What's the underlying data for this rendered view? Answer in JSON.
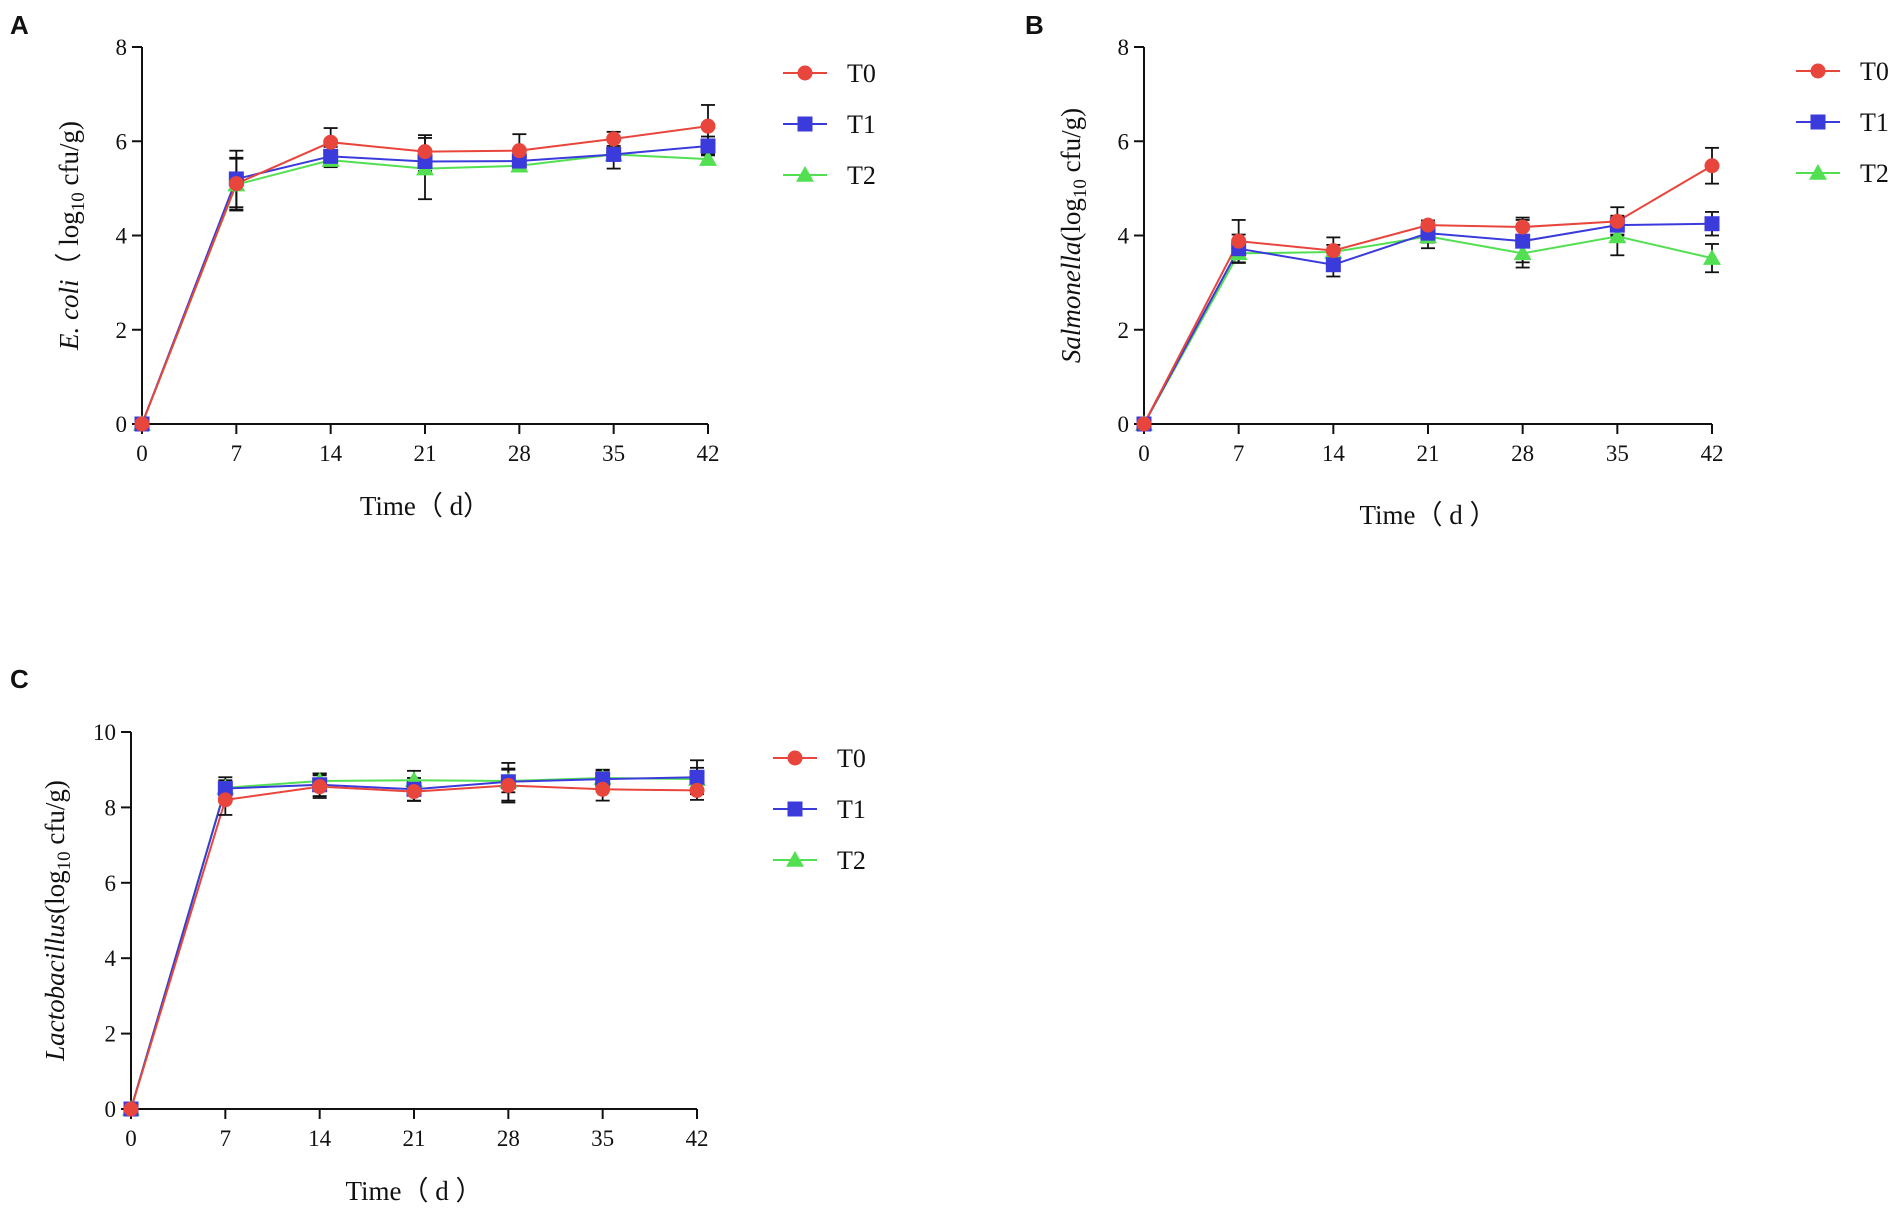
{
  "colors": {
    "T0": "#e8453c",
    "T1": "#3b3bdc",
    "T2": "#52e052",
    "axis": "#111111",
    "errorbar": "#111111"
  },
  "chart_data": [
    {
      "panel": "A",
      "type": "line",
      "title": "",
      "xlabel": "Time（ d）",
      "ylabel": {
        "italic": "E. coli",
        "pre": "（ log",
        "sub": "10",
        "post": " cfu/g)"
      },
      "x": [
        0,
        7,
        14,
        21,
        28,
        35,
        42
      ],
      "xticks": [
        "0",
        "7",
        "14",
        "21",
        "28",
        "35",
        "42"
      ],
      "ylim": [
        0,
        8
      ],
      "yticks": [
        "0",
        "2",
        "4",
        "6",
        "8"
      ],
      "legend": {
        "position": "top-right",
        "entries": [
          "T0",
          "T1",
          "T2"
        ]
      },
      "series": [
        {
          "name": "T0",
          "marker": "circle",
          "values": [
            0,
            5.1,
            5.98,
            5.78,
            5.8,
            6.05,
            6.32
          ],
          "errors": [
            0,
            0.55,
            0.3,
            0.35,
            0.35,
            0.15,
            0.45
          ]
        },
        {
          "name": "T1",
          "marker": "square",
          "values": [
            0,
            5.2,
            5.68,
            5.57,
            5.58,
            5.72,
            5.9
          ],
          "errors": [
            0,
            0.6,
            0.2,
            0.2,
            0.15,
            0.3,
            0.2
          ]
        },
        {
          "name": "T2",
          "marker": "triangle",
          "values": [
            0,
            5.08,
            5.6,
            5.42,
            5.48,
            5.72,
            5.62
          ],
          "errors": [
            0,
            0.55,
            0.15,
            0.65,
            0.1,
            0.1,
            0.1
          ]
        }
      ]
    },
    {
      "panel": "B",
      "type": "line",
      "title": "",
      "xlabel": "Time（ d ）",
      "ylabel": {
        "italic": "Salmonella",
        "pre": "(log",
        "sub": "10",
        "post": " cfu/g)"
      },
      "x": [
        0,
        7,
        14,
        21,
        28,
        35,
        42
      ],
      "xticks": [
        "0",
        "7",
        "14",
        "21",
        "28",
        "35",
        "42"
      ],
      "ylim": [
        0,
        8
      ],
      "yticks": [
        "0",
        "2",
        "4",
        "6",
        "8"
      ],
      "legend": {
        "position": "top-right",
        "entries": [
          "T0",
          "T1",
          "T2"
        ]
      },
      "series": [
        {
          "name": "T0",
          "marker": "circle",
          "values": [
            0,
            3.88,
            3.68,
            4.22,
            4.18,
            4.3,
            5.48
          ],
          "errors": [
            0,
            0.45,
            0.28,
            0.1,
            0.2,
            0.3,
            0.38
          ]
        },
        {
          "name": "T1",
          "marker": "square",
          "values": [
            0,
            3.72,
            3.38,
            4.05,
            3.88,
            4.22,
            4.25
          ],
          "errors": [
            0,
            0.3,
            0.25,
            0.2,
            0.45,
            0.2,
            0.25
          ]
        },
        {
          "name": "T2",
          "marker": "triangle",
          "values": [
            0,
            3.62,
            3.65,
            3.98,
            3.62,
            3.98,
            3.52
          ],
          "errors": [
            0,
            0.2,
            0.15,
            0.25,
            0.3,
            0.4,
            0.3
          ]
        }
      ]
    },
    {
      "panel": "C",
      "type": "line",
      "title": "",
      "xlabel": "Time（ d ）",
      "ylabel": {
        "italic": "Lactobacillus",
        "pre": "(log",
        "sub": "10",
        "post": " cfu/g)"
      },
      "x": [
        0,
        7,
        14,
        21,
        28,
        35,
        42
      ],
      "xticks": [
        "0",
        "7",
        "14",
        "21",
        "28",
        "35",
        "42"
      ],
      "ylim": [
        0,
        10
      ],
      "yticks": [
        "0",
        "2",
        "4",
        "6",
        "8",
        "10"
      ],
      "legend": {
        "position": "top-right",
        "entries": [
          "T0",
          "T1",
          "T2"
        ]
      },
      "series": [
        {
          "name": "T0",
          "marker": "circle",
          "values": [
            0,
            8.2,
            8.55,
            8.42,
            8.58,
            8.48,
            8.45
          ],
          "errors": [
            0,
            0.4,
            0.3,
            0.25,
            0.45,
            0.3,
            0.25
          ]
        },
        {
          "name": "T1",
          "marker": "square",
          "values": [
            0,
            8.5,
            8.6,
            8.48,
            8.68,
            8.75,
            8.8
          ],
          "errors": [
            0,
            0.3,
            0.3,
            0.3,
            0.5,
            0.25,
            0.45
          ]
        },
        {
          "name": "T2",
          "marker": "triangle",
          "values": [
            0,
            8.52,
            8.7,
            8.72,
            8.7,
            8.78,
            8.75
          ],
          "errors": [
            0,
            0.2,
            0.2,
            0.25,
            0.3,
            0.2,
            0.3
          ]
        }
      ]
    }
  ]
}
